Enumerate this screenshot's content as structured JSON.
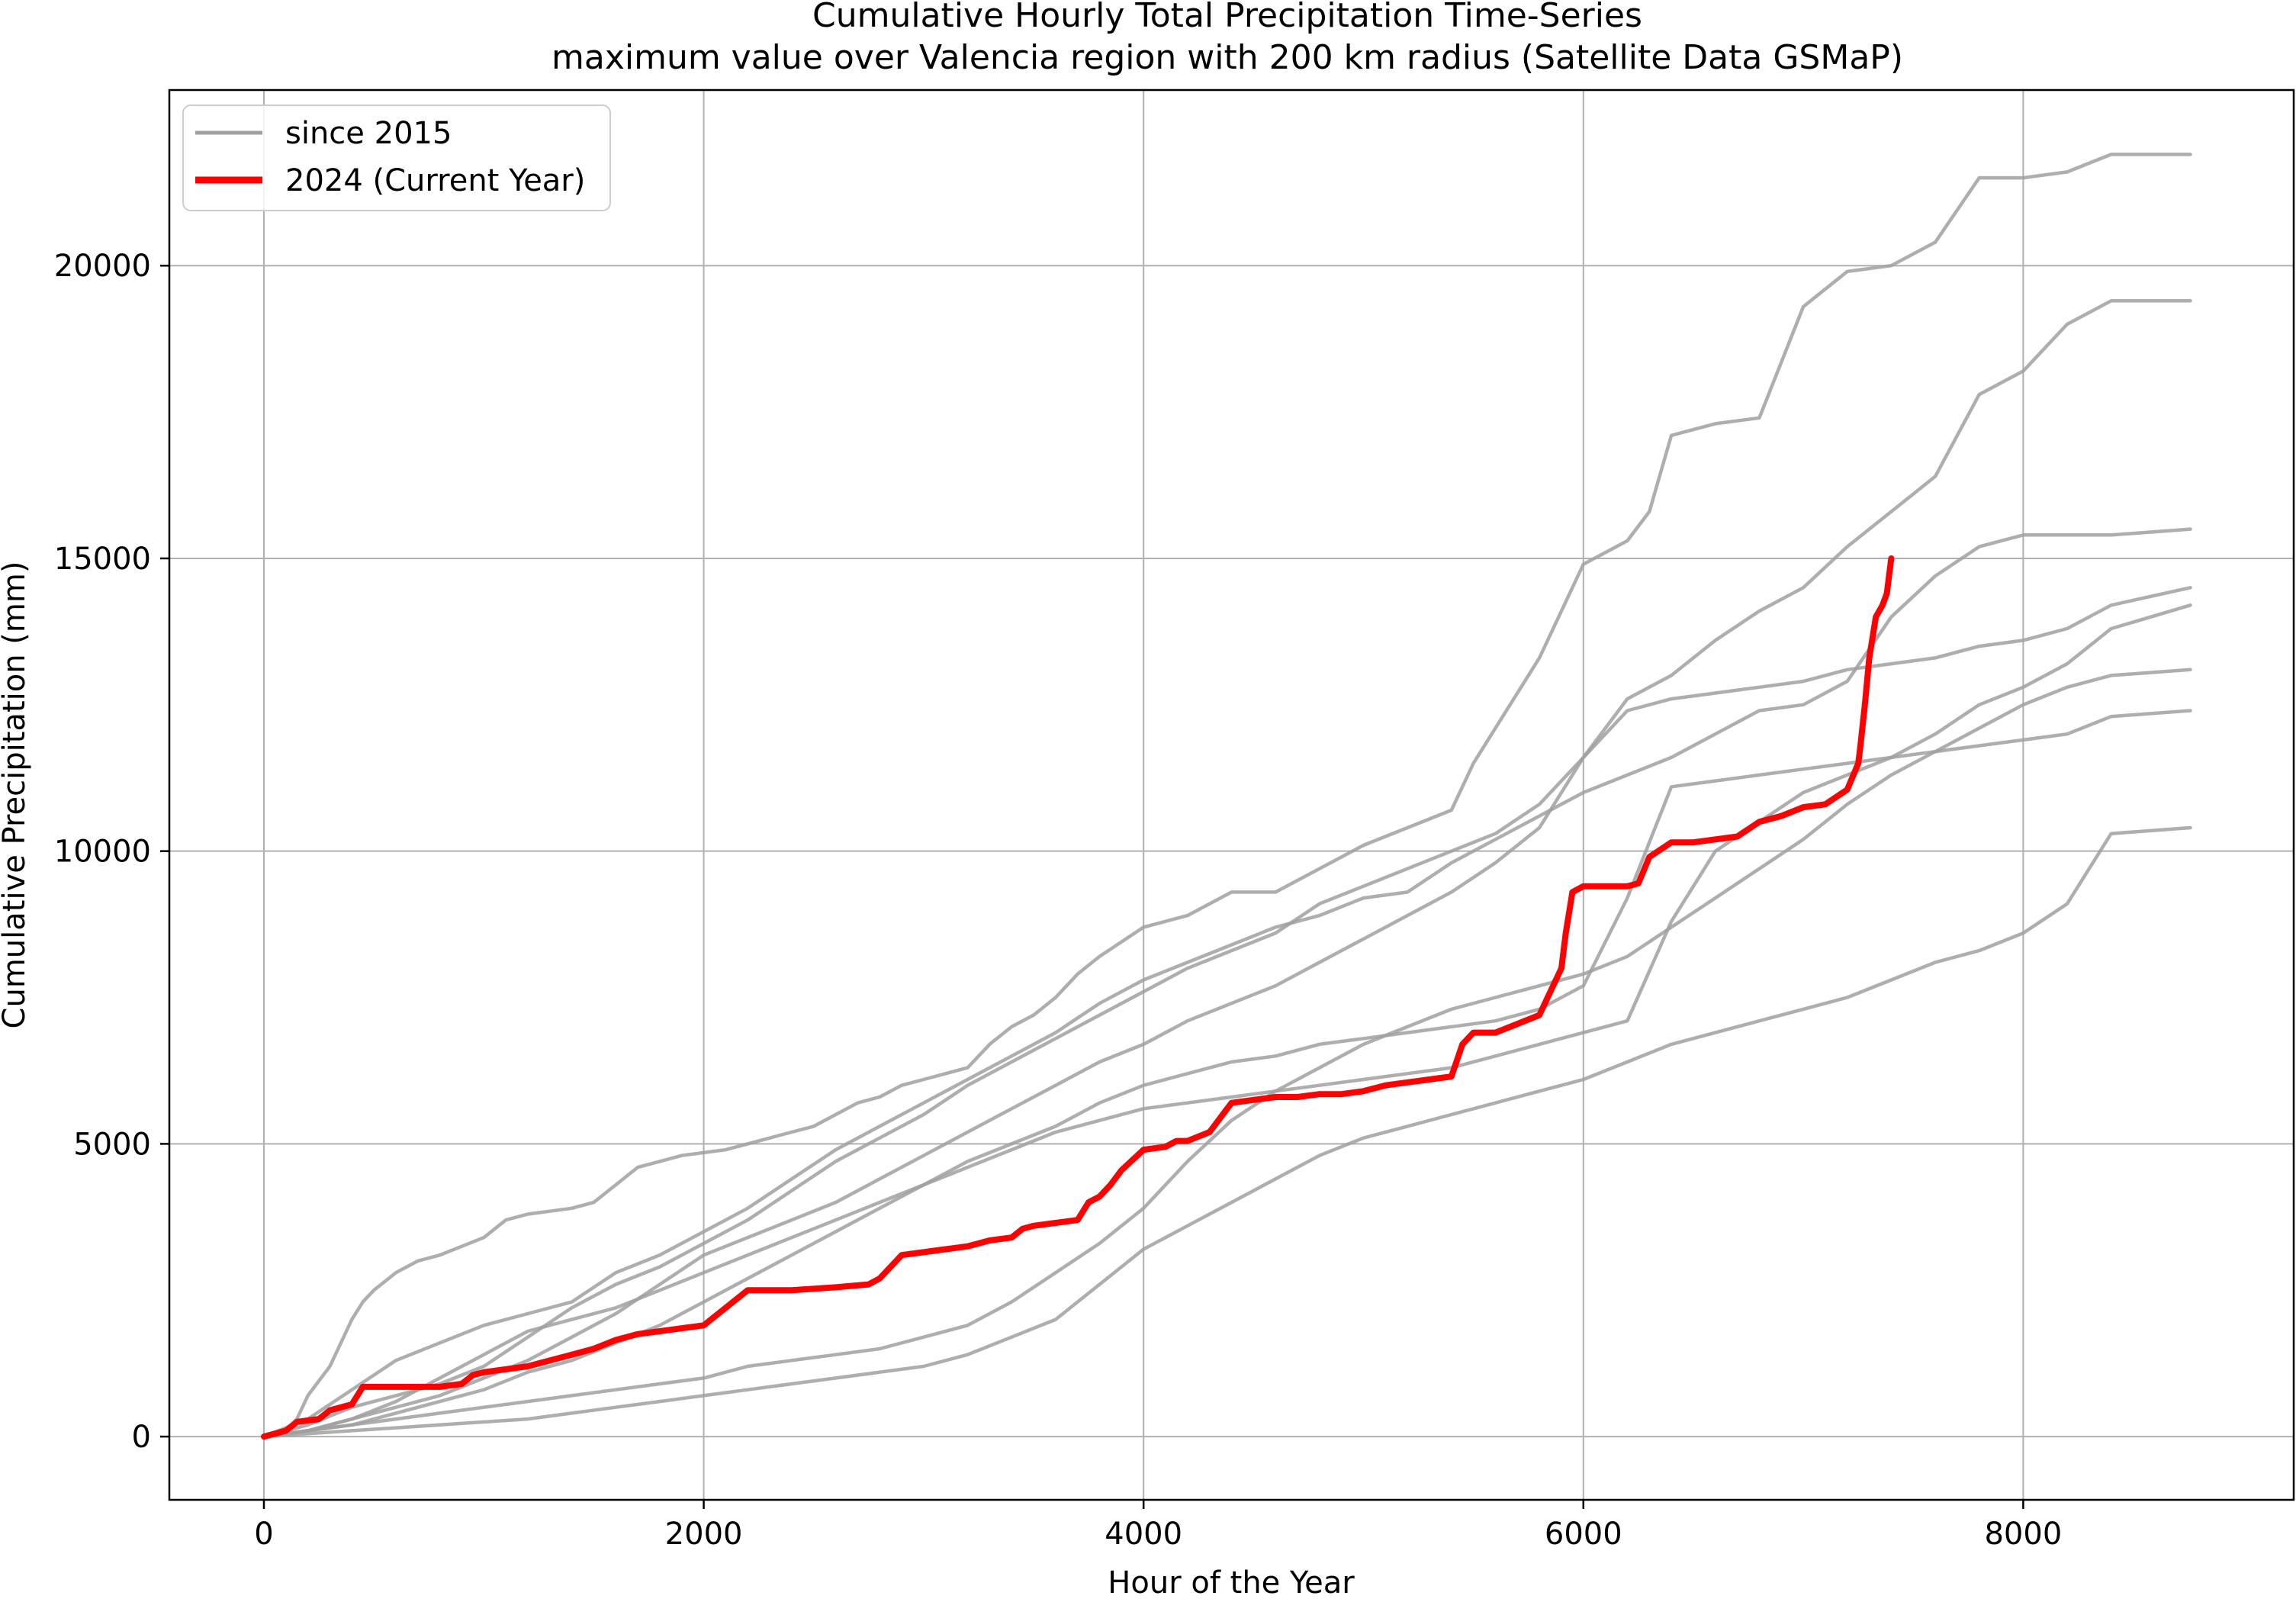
{
  "chart_data": {
    "type": "line",
    "title_line1": "Cumulative Hourly Total Precipitation Time-Series",
    "title_line2": "maximum value over Valencia region with 200 km radius (Satellite Data GSMaP)",
    "xlabel": "Hour of the Year",
    "ylabel": "Cumulative Precipitation (mm)",
    "xlim": [
      -430,
      9230
    ],
    "ylim": [
      -1080,
      23000
    ],
    "xticks": [
      0,
      2000,
      4000,
      6000,
      8000
    ],
    "yticks": [
      0,
      5000,
      10000,
      15000,
      20000
    ],
    "grid": true,
    "legend_position": "upper-left",
    "legend": [
      {
        "label": "since 2015",
        "color": "#a0a0a0",
        "style": "gray"
      },
      {
        "label": "2024 (Current Year)",
        "color": "#ff0000",
        "style": "red"
      }
    ],
    "colors": {
      "history": "#a0a0a0",
      "current": "#ff0000",
      "grid": "#b0b0b0"
    },
    "series": [
      {
        "group": "history",
        "x": [
          0,
          100,
          150,
          200,
          300,
          350,
          400,
          450,
          500,
          600,
          700,
          800,
          1000,
          1100,
          1200,
          1300,
          1400,
          1500,
          1600,
          1700,
          1800,
          1900,
          2000,
          2100,
          2200,
          2300,
          2400,
          2500,
          2600,
          2700,
          2800,
          2900,
          3000,
          3200,
          3300,
          3400,
          3500,
          3600,
          3700,
          3800,
          4000,
          4200,
          4400,
          4600,
          4800,
          5000,
          5200,
          5400,
          5500,
          5800,
          6000,
          6200,
          6300,
          6400,
          6500,
          6600,
          6800,
          7000,
          7200,
          7400,
          7600,
          7800,
          8000,
          8200,
          8400,
          8760
        ],
        "values": [
          0,
          100,
          300,
          700,
          1200,
          1600,
          2000,
          2300,
          2500,
          2800,
          3000,
          3100,
          3400,
          3700,
          3800,
          3850,
          3900,
          4000,
          4300,
          4600,
          4700,
          4800,
          4850,
          4900,
          5000,
          5100,
          5200,
          5300,
          5500,
          5700,
          5800,
          6000,
          6100,
          6300,
          6700,
          7000,
          7200,
          7500,
          7900,
          8200,
          8700,
          8900,
          9300,
          9300,
          9700,
          10100,
          10400,
          10700,
          11500,
          13300,
          14900,
          15300,
          15800,
          17100,
          17200,
          17300,
          17400,
          19300,
          19900,
          20000,
          20400,
          21500,
          21500,
          21600,
          21900,
          21900
        ]
      },
      {
        "group": "history",
        "x": [
          0,
          200,
          400,
          600,
          800,
          1000,
          1200,
          1400,
          1600,
          1800,
          2000,
          2200,
          2400,
          2600,
          2800,
          3000,
          3200,
          3400,
          3600,
          3800,
          4000,
          4200,
          4400,
          4600,
          4800,
          5000,
          5200,
          5400,
          5600,
          5800,
          6000,
          6200,
          6400,
          6600,
          6800,
          7000,
          7200,
          7400,
          7600,
          7800,
          8000,
          8200,
          8400,
          8760
        ],
        "values": [
          0,
          200,
          500,
          700,
          900,
          1200,
          1700,
          2200,
          2600,
          2900,
          3300,
          3700,
          4200,
          4700,
          5100,
          5500,
          6000,
          6400,
          6800,
          7200,
          7600,
          8000,
          8300,
          8600,
          9100,
          9400,
          9700,
          10000,
          10300,
          10800,
          11600,
          12600,
          13000,
          13600,
          14100,
          14500,
          15200,
          15800,
          16400,
          17800,
          18200,
          19000,
          19400,
          19400
        ]
      },
      {
        "group": "history",
        "x": [
          0,
          200,
          400,
          600,
          800,
          1000,
          1200,
          1400,
          1600,
          1800,
          2000,
          2200,
          2400,
          2600,
          2800,
          3000,
          3200,
          3400,
          3600,
          3800,
          4000,
          4200,
          4400,
          4600,
          4800,
          5000,
          5200,
          5400,
          5600,
          5800,
          6000,
          6200,
          6400,
          6600,
          6800,
          7000,
          7200,
          7400,
          7600,
          7800,
          8000,
          8200,
          8400,
          8760
        ],
        "values": [
          0,
          300,
          800,
          1300,
          1600,
          1900,
          2100,
          2300,
          2800,
          3100,
          3500,
          3900,
          4400,
          4900,
          5300,
          5700,
          6100,
          6500,
          6900,
          7400,
          7800,
          8100,
          8400,
          8700,
          8900,
          9200,
          9300,
          9800,
          10200,
          10600,
          11000,
          11300,
          11600,
          12000,
          12400,
          12500,
          12900,
          14000,
          14700,
          15200,
          15400,
          15400,
          15400,
          15500
        ]
      },
      {
        "group": "history",
        "x": [
          0,
          200,
          400,
          600,
          800,
          1000,
          1200,
          1400,
          1600,
          1800,
          2000,
          2200,
          2400,
          2600,
          2800,
          3000,
          3200,
          3400,
          3600,
          3800,
          4000,
          4200,
          4400,
          4600,
          4800,
          5000,
          5200,
          5400,
          5600,
          5800,
          6000,
          6200,
          6400,
          6600,
          6800,
          7000,
          7200,
          7400,
          7600,
          7800,
          8000,
          8200,
          8400,
          8760
        ],
        "values": [
          0,
          100,
          300,
          500,
          700,
          1000,
          1300,
          1700,
          2100,
          2600,
          3100,
          3400,
          3700,
          4000,
          4400,
          4800,
          5200,
          5600,
          6000,
          6400,
          6700,
          7100,
          7400,
          7700,
          8100,
          8500,
          8900,
          9300,
          9800,
          10400,
          11600,
          12400,
          12600,
          12700,
          12800,
          12900,
          13100,
          13200,
          13300,
          13500,
          13600,
          13800,
          14200,
          14500
        ]
      },
      {
        "group": "history",
        "x": [
          0,
          200,
          400,
          600,
          800,
          1000,
          1200,
          1400,
          1600,
          1800,
          2000,
          2200,
          2400,
          2600,
          2800,
          3000,
          3200,
          3400,
          3600,
          3800,
          4000,
          4200,
          4400,
          4600,
          4800,
          5000,
          5200,
          5400,
          5600,
          5800,
          6000,
          6200,
          6400,
          6600,
          6800,
          7000,
          7200,
          7400,
          7600,
          7800,
          8000,
          8200,
          8400,
          8760
        ],
        "values": [
          0,
          100,
          200,
          400,
          600,
          800,
          1100,
          1300,
          1600,
          1900,
          2300,
          2700,
          3100,
          3500,
          3900,
          4300,
          4700,
          5000,
          5300,
          5700,
          6000,
          6200,
          6400,
          6500,
          6700,
          6800,
          6900,
          7000,
          7100,
          7300,
          7700,
          9200,
          11100,
          11200,
          11300,
          11400,
          11500,
          11600,
          11700,
          11800,
          11900,
          12000,
          12300,
          12400
        ]
      },
      {
        "group": "history",
        "x": [
          0,
          200,
          400,
          600,
          800,
          1000,
          1200,
          1400,
          1600,
          1800,
          2000,
          2200,
          2400,
          2600,
          2800,
          3000,
          3200,
          3400,
          3600,
          3800,
          4000,
          4200,
          4400,
          4600,
          4800,
          5000,
          5200,
          5400,
          5600,
          5800,
          6000,
          6200,
          6400,
          6600,
          6800,
          7000,
          7200,
          7400,
          7600,
          7800,
          8000,
          8200,
          8400,
          8760
        ],
        "values": [
          0,
          100,
          200,
          300,
          400,
          500,
          600,
          700,
          800,
          900,
          1000,
          1200,
          1300,
          1400,
          1500,
          1700,
          1900,
          2300,
          2800,
          3300,
          3900,
          4700,
          5400,
          5900,
          6300,
          6700,
          7000,
          7300,
          7500,
          7700,
          7900,
          8200,
          8700,
          9200,
          9700,
          10200,
          10800,
          11300,
          11700,
          12100,
          12500,
          12800,
          13000,
          13100
        ]
      },
      {
        "group": "history",
        "x": [
          0,
          200,
          400,
          600,
          800,
          1000,
          1200,
          1400,
          1600,
          1800,
          2000,
          2200,
          2400,
          2600,
          2800,
          3000,
          3200,
          3400,
          3600,
          3800,
          4000,
          4200,
          4400,
          4600,
          4800,
          5000,
          5200,
          5400,
          5600,
          5800,
          6000,
          6200,
          6400,
          6600,
          6800,
          7000,
          7200,
          7400,
          7600,
          7800,
          8000,
          8200,
          8400,
          8760
        ],
        "values": [
          0,
          50,
          100,
          150,
          200,
          250,
          300,
          400,
          500,
          600,
          700,
          800,
          900,
          1000,
          1100,
          1200,
          1400,
          1700,
          2000,
          2600,
          3200,
          3600,
          4000,
          4400,
          4800,
          5100,
          5300,
          5500,
          5700,
          5900,
          6100,
          6400,
          6700,
          6900,
          7100,
          7300,
          7500,
          7800,
          8100,
          8300,
          8600,
          9100,
          10300,
          10400
        ]
      },
      {
        "group": "history",
        "x": [
          0,
          200,
          400,
          600,
          800,
          1000,
          1200,
          1400,
          1600,
          1800,
          2000,
          2200,
          2400,
          2600,
          2800,
          3000,
          3200,
          3400,
          3600,
          3800,
          4000,
          4200,
          4400,
          4600,
          4800,
          5000,
          5200,
          5400,
          5600,
          5800,
          6000,
          6200,
          6400,
          6600,
          6800,
          7000,
          7200,
          7400,
          7600,
          7800,
          8000,
          8200,
          8400,
          8760
        ],
        "values": [
          0,
          100,
          300,
          600,
          1000,
          1400,
          1800,
          2000,
          2200,
          2500,
          2800,
          3100,
          3400,
          3700,
          4000,
          4300,
          4600,
          4900,
          5200,
          5400,
          5600,
          5700,
          5800,
          5900,
          6000,
          6100,
          6200,
          6300,
          6500,
          6700,
          6900,
          7100,
          8800,
          10000,
          10500,
          11000,
          11300,
          11600,
          12000,
          12500,
          12800,
          13200,
          13800,
          14200
        ]
      },
      {
        "group": "current",
        "x": [
          0,
          100,
          150,
          250,
          300,
          400,
          450,
          500,
          600,
          700,
          800,
          900,
          950,
          1000,
          1200,
          1400,
          1500,
          1600,
          1700,
          1800,
          1900,
          2000,
          2100,
          2200,
          2400,
          2600,
          2750,
          2800,
          2850,
          2900,
          3000,
          3100,
          3200,
          3300,
          3400,
          3450,
          3500,
          3600,
          3700,
          3750,
          3800,
          3850,
          3900,
          4000,
          4100,
          4150,
          4200,
          4300,
          4400,
          4500,
          4600,
          4700,
          4800,
          4900,
          5000,
          5100,
          5200,
          5300,
          5400,
          5450,
          5500,
          5600,
          5700,
          5800,
          5850,
          5900,
          5920,
          5950,
          6000,
          6100,
          6200,
          6250,
          6300,
          6400,
          6500,
          6600,
          6700,
          6800,
          6900,
          7000,
          7100,
          7200,
          7250,
          7260,
          7280,
          7300,
          7330,
          7360,
          7380,
          7400
        ],
        "values": [
          0,
          100,
          250,
          300,
          450,
          550,
          850,
          850,
          850,
          850,
          850,
          900,
          1050,
          1100,
          1200,
          1400,
          1500,
          1650,
          1750,
          1800,
          1850,
          1900,
          2200,
          2500,
          2500,
          2550,
          2600,
          2700,
          2900,
          3100,
          3150,
          3200,
          3250,
          3350,
          3400,
          3550,
          3600,
          3650,
          3700,
          4000,
          4100,
          4300,
          4550,
          4900,
          4950,
          5050,
          5050,
          5200,
          5700,
          5750,
          5800,
          5800,
          5850,
          5850,
          5900,
          6000,
          6050,
          6100,
          6150,
          6700,
          6900,
          6900,
          7050,
          7200,
          7600,
          8000,
          8600,
          9300,
          9400,
          9400,
          9400,
          9450,
          9900,
          10150,
          10150,
          10200,
          10250,
          10500,
          10600,
          10750,
          10800,
          11050,
          11500,
          11800,
          12500,
          13300,
          14000,
          14200,
          14400,
          15000
        ]
      }
    ]
  }
}
